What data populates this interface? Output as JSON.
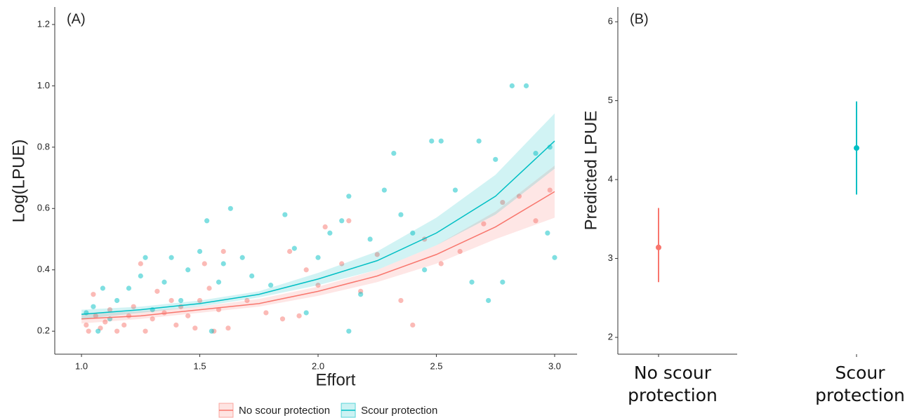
{
  "chart_data": [
    {
      "type": "scatter",
      "title": "(A)",
      "x_label": "Effort",
      "y_label": "Log(LPUE)",
      "xlim": [
        0.887,
        3.095
      ],
      "ylim": [
        0.125,
        1.257
      ],
      "xticks": [
        {
          "value": 1,
          "label": "1.0"
        },
        1.5,
        {
          "value": 2,
          "label": "2.0"
        },
        2.5,
        {
          "value": 3,
          "label": "3.0"
        }
      ],
      "yticks": [
        0.2,
        0.4,
        0.6,
        0.8,
        {
          "value": 1,
          "label": "1.0"
        },
        1.2
      ],
      "series": [
        {
          "name": "No scour protection",
          "color": "#f8766d",
          "x": [
            1.02,
            1.03,
            1.05,
            1.06,
            1.08,
            1.1,
            1.12,
            1.15,
            1.18,
            1.2,
            1.22,
            1.25,
            1.27,
            1.3,
            1.32,
            1.35,
            1.38,
            1.4,
            1.42,
            1.45,
            1.48,
            1.5,
            1.52,
            1.54,
            1.56,
            1.58,
            1.6,
            1.62,
            1.7,
            1.78,
            1.85,
            1.88,
            1.92,
            1.95,
            2.0,
            2.03,
            2.1,
            2.13,
            2.18,
            2.25,
            2.35,
            2.4,
            2.45,
            2.52,
            2.6,
            2.7,
            2.78,
            2.85,
            2.92,
            2.98
          ],
          "values": [
            0.22,
            0.2,
            0.32,
            0.25,
            0.21,
            0.23,
            0.27,
            0.2,
            0.22,
            0.25,
            0.28,
            0.42,
            0.2,
            0.24,
            0.33,
            0.26,
            0.3,
            0.22,
            0.28,
            0.25,
            0.21,
            0.3,
            0.42,
            0.34,
            0.2,
            0.27,
            0.46,
            0.21,
            0.3,
            0.26,
            0.24,
            0.46,
            0.25,
            0.4,
            0.35,
            0.54,
            0.42,
            0.56,
            0.33,
            0.45,
            0.3,
            0.22,
            0.5,
            0.42,
            0.46,
            0.55,
            0.62,
            0.64,
            0.56,
            0.66
          ],
          "fit_x": [
            1,
            1.25,
            1.5,
            1.75,
            2,
            2.25,
            2.5,
            2.75,
            3
          ],
          "fit": [
            0.24,
            0.25,
            0.27,
            0.29,
            0.33,
            0.38,
            0.45,
            0.54,
            0.655
          ],
          "fit_lower": [
            0.225,
            0.24,
            0.26,
            0.28,
            0.315,
            0.36,
            0.42,
            0.5,
            0.57
          ],
          "fit_upper": [
            0.255,
            0.265,
            0.28,
            0.305,
            0.345,
            0.4,
            0.48,
            0.59,
            0.74
          ]
        },
        {
          "name": "Scour protection",
          "color": "#00bfc4",
          "x": [
            1.02,
            1.05,
            1.07,
            1.09,
            1.12,
            1.15,
            1.2,
            1.25,
            1.27,
            1.3,
            1.35,
            1.38,
            1.42,
            1.45,
            1.5,
            1.53,
            1.55,
            1.58,
            1.6,
            1.63,
            1.68,
            1.72,
            1.8,
            1.86,
            1.9,
            1.95,
            2.0,
            2.05,
            2.1,
            2.13,
            2.13,
            2.18,
            2.22,
            2.28,
            2.32,
            2.35,
            2.4,
            2.45,
            2.48,
            2.52,
            2.58,
            2.65,
            2.68,
            2.72,
            2.75,
            2.82,
            2.88,
            2.92,
            2.97,
            3.0,
            2.98,
            2.78
          ],
          "values": [
            0.26,
            0.28,
            0.2,
            0.34,
            0.24,
            0.3,
            0.34,
            0.38,
            0.44,
            0.27,
            0.36,
            0.44,
            0.3,
            0.4,
            0.46,
            0.56,
            0.2,
            0.36,
            0.42,
            0.6,
            0.44,
            0.38,
            0.35,
            0.58,
            0.47,
            0.26,
            0.44,
            0.52,
            0.56,
            0.64,
            0.2,
            0.32,
            0.5,
            0.66,
            0.78,
            0.58,
            0.52,
            0.4,
            0.82,
            0.82,
            0.66,
            0.36,
            0.82,
            0.3,
            0.76,
            1.0,
            1.0,
            0.78,
            0.52,
            0.44,
            0.8,
            0.36
          ],
          "fit_x": [
            1,
            1.25,
            1.5,
            1.75,
            2,
            2.25,
            2.5,
            2.75,
            3
          ],
          "fit": [
            0.255,
            0.27,
            0.29,
            0.32,
            0.37,
            0.43,
            0.52,
            0.64,
            0.82
          ],
          "fit_lower": [
            0.24,
            0.26,
            0.28,
            0.31,
            0.35,
            0.4,
            0.48,
            0.58,
            0.73
          ],
          "fit_upper": [
            0.27,
            0.28,
            0.3,
            0.33,
            0.39,
            0.46,
            0.57,
            0.71,
            0.91
          ]
        }
      ]
    },
    {
      "type": "pointrange",
      "title": "(B)",
      "y_label": "Predicted LPUE",
      "ylim": [
        1.787,
        6.187
      ],
      "yticks": [
        2,
        3,
        4,
        5,
        6
      ],
      "categories": [
        "No scour protection",
        "Scour protection"
      ],
      "colors": [
        "#f8766d",
        "#00bfc4"
      ],
      "values": [
        3.14,
        4.4
      ],
      "lower": [
        2.7,
        3.81
      ],
      "upper": [
        3.64,
        4.99
      ]
    }
  ]
}
